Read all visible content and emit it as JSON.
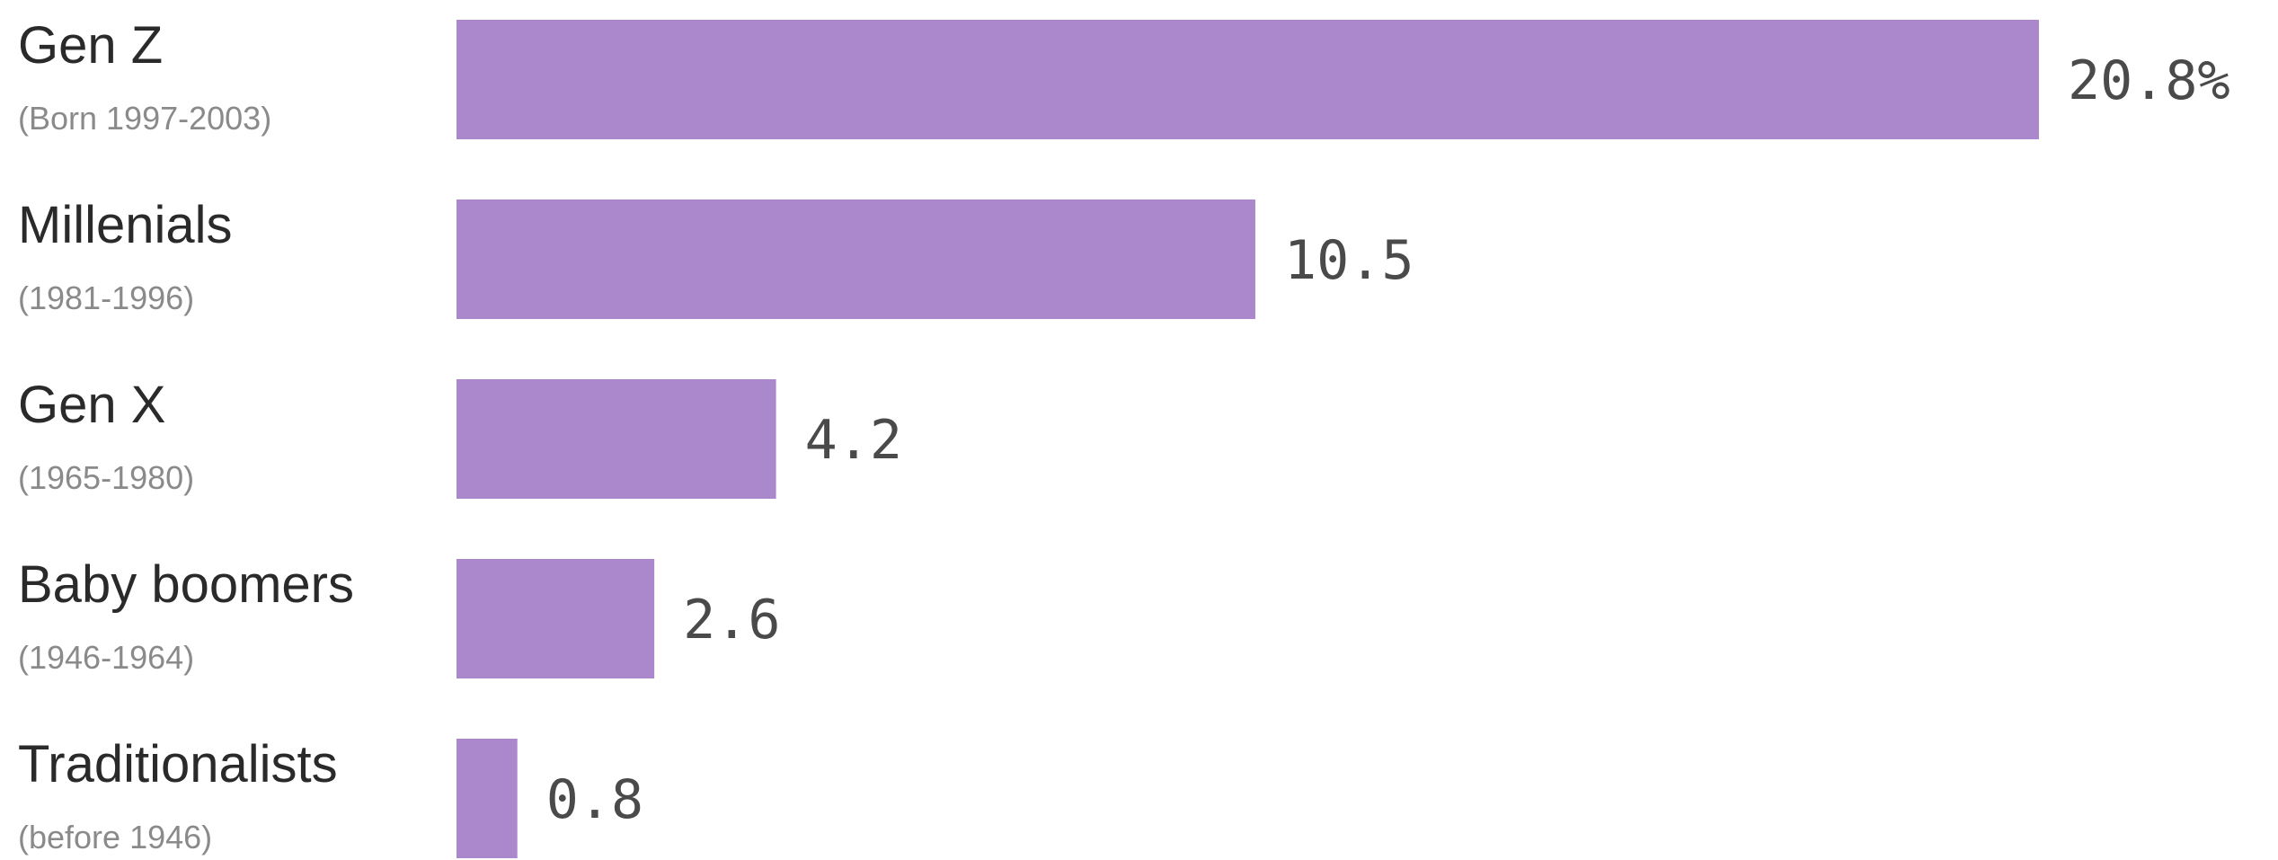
{
  "chart_data": {
    "type": "bar",
    "orientation": "horizontal",
    "categories": [
      "Gen Z",
      "Millenials",
      "Gen X",
      "Baby boomers",
      "Traditionalists"
    ],
    "subtitles": [
      "(Born 1997-2003)",
      "(1981-1996)",
      "(1965-1980)",
      "(1946-1964)",
      "(before 1946)"
    ],
    "values": [
      20.8,
      10.5,
      4.2,
      2.6,
      0.8
    ],
    "value_labels": [
      "20.8%",
      "10.5",
      "4.2",
      "2.6",
      "0.8"
    ],
    "xlim": [
      0,
      20.8
    ],
    "grid": false,
    "bar_color": "#ab87cc"
  }
}
